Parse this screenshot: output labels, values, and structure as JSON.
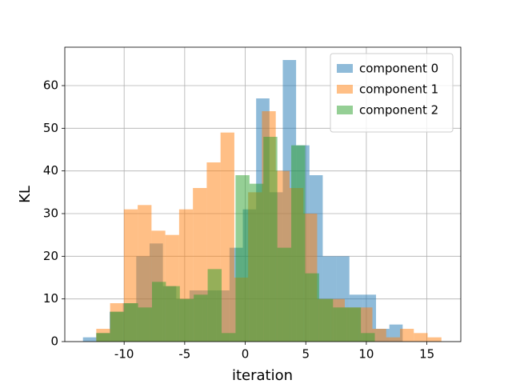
{
  "chart_data": {
    "type": "histogram",
    "xlabel": "iteration",
    "ylabel": "KL",
    "xlim": [
      -14.9,
      17.8
    ],
    "ylim": [
      0,
      69
    ],
    "xticks": [
      -10,
      -5,
      0,
      5,
      10,
      15
    ],
    "yticks": [
      0,
      10,
      20,
      30,
      40,
      50,
      60
    ],
    "grid": true,
    "legend": "upper right",
    "series": [
      {
        "name": "component 0",
        "color": "#1f77b4",
        "bins": [
          -13.4,
          -12.3,
          -11.2,
          -10.1,
          -9.0,
          -7.9,
          -6.8,
          -5.7,
          -4.6,
          -3.5,
          -2.4,
          -1.3,
          -0.2,
          0.9,
          2.0,
          3.1,
          4.2,
          5.3,
          6.4,
          7.5,
          8.6,
          9.7,
          10.8,
          11.9,
          13.0
        ],
        "values": [
          1,
          2,
          7,
          9,
          20,
          23,
          13,
          10,
          12,
          12,
          12,
          22,
          31,
          57,
          35,
          66,
          46,
          39,
          20,
          20,
          11,
          11,
          3,
          4
        ]
      },
      {
        "name": "component 1",
        "color": "#ff7f0e",
        "bins": [
          -12.3,
          -11.16,
          -10.02,
          -8.88,
          -7.74,
          -6.6,
          -5.46,
          -4.32,
          -3.18,
          -2.04,
          -0.9,
          0.24,
          1.38,
          2.52,
          3.66,
          4.8,
          5.94,
          7.08,
          8.22,
          9.36,
          10.5,
          11.64,
          12.78,
          13.92,
          15.06,
          16.2
        ],
        "values": [
          3,
          9,
          31,
          32,
          26,
          25,
          31,
          36,
          42,
          49,
          15,
          35,
          54,
          40,
          36,
          30,
          10,
          10,
          8,
          8,
          3,
          1,
          3,
          2,
          1
        ]
      },
      {
        "name": "component 2",
        "color": "#2ca02c",
        "bins": [
          -12.3,
          -11.15,
          -10.0,
          -8.85,
          -7.7,
          -6.55,
          -5.4,
          -4.25,
          -3.1,
          -1.95,
          -0.8,
          0.35,
          1.5,
          2.65,
          3.8,
          4.95,
          6.1,
          7.25,
          8.4,
          9.55,
          10.7
        ],
        "values": [
          2,
          7,
          9,
          8,
          14,
          13,
          10,
          11,
          17,
          2,
          39,
          37,
          48,
          22,
          46,
          16,
          10,
          8,
          8,
          2
        ]
      }
    ]
  }
}
